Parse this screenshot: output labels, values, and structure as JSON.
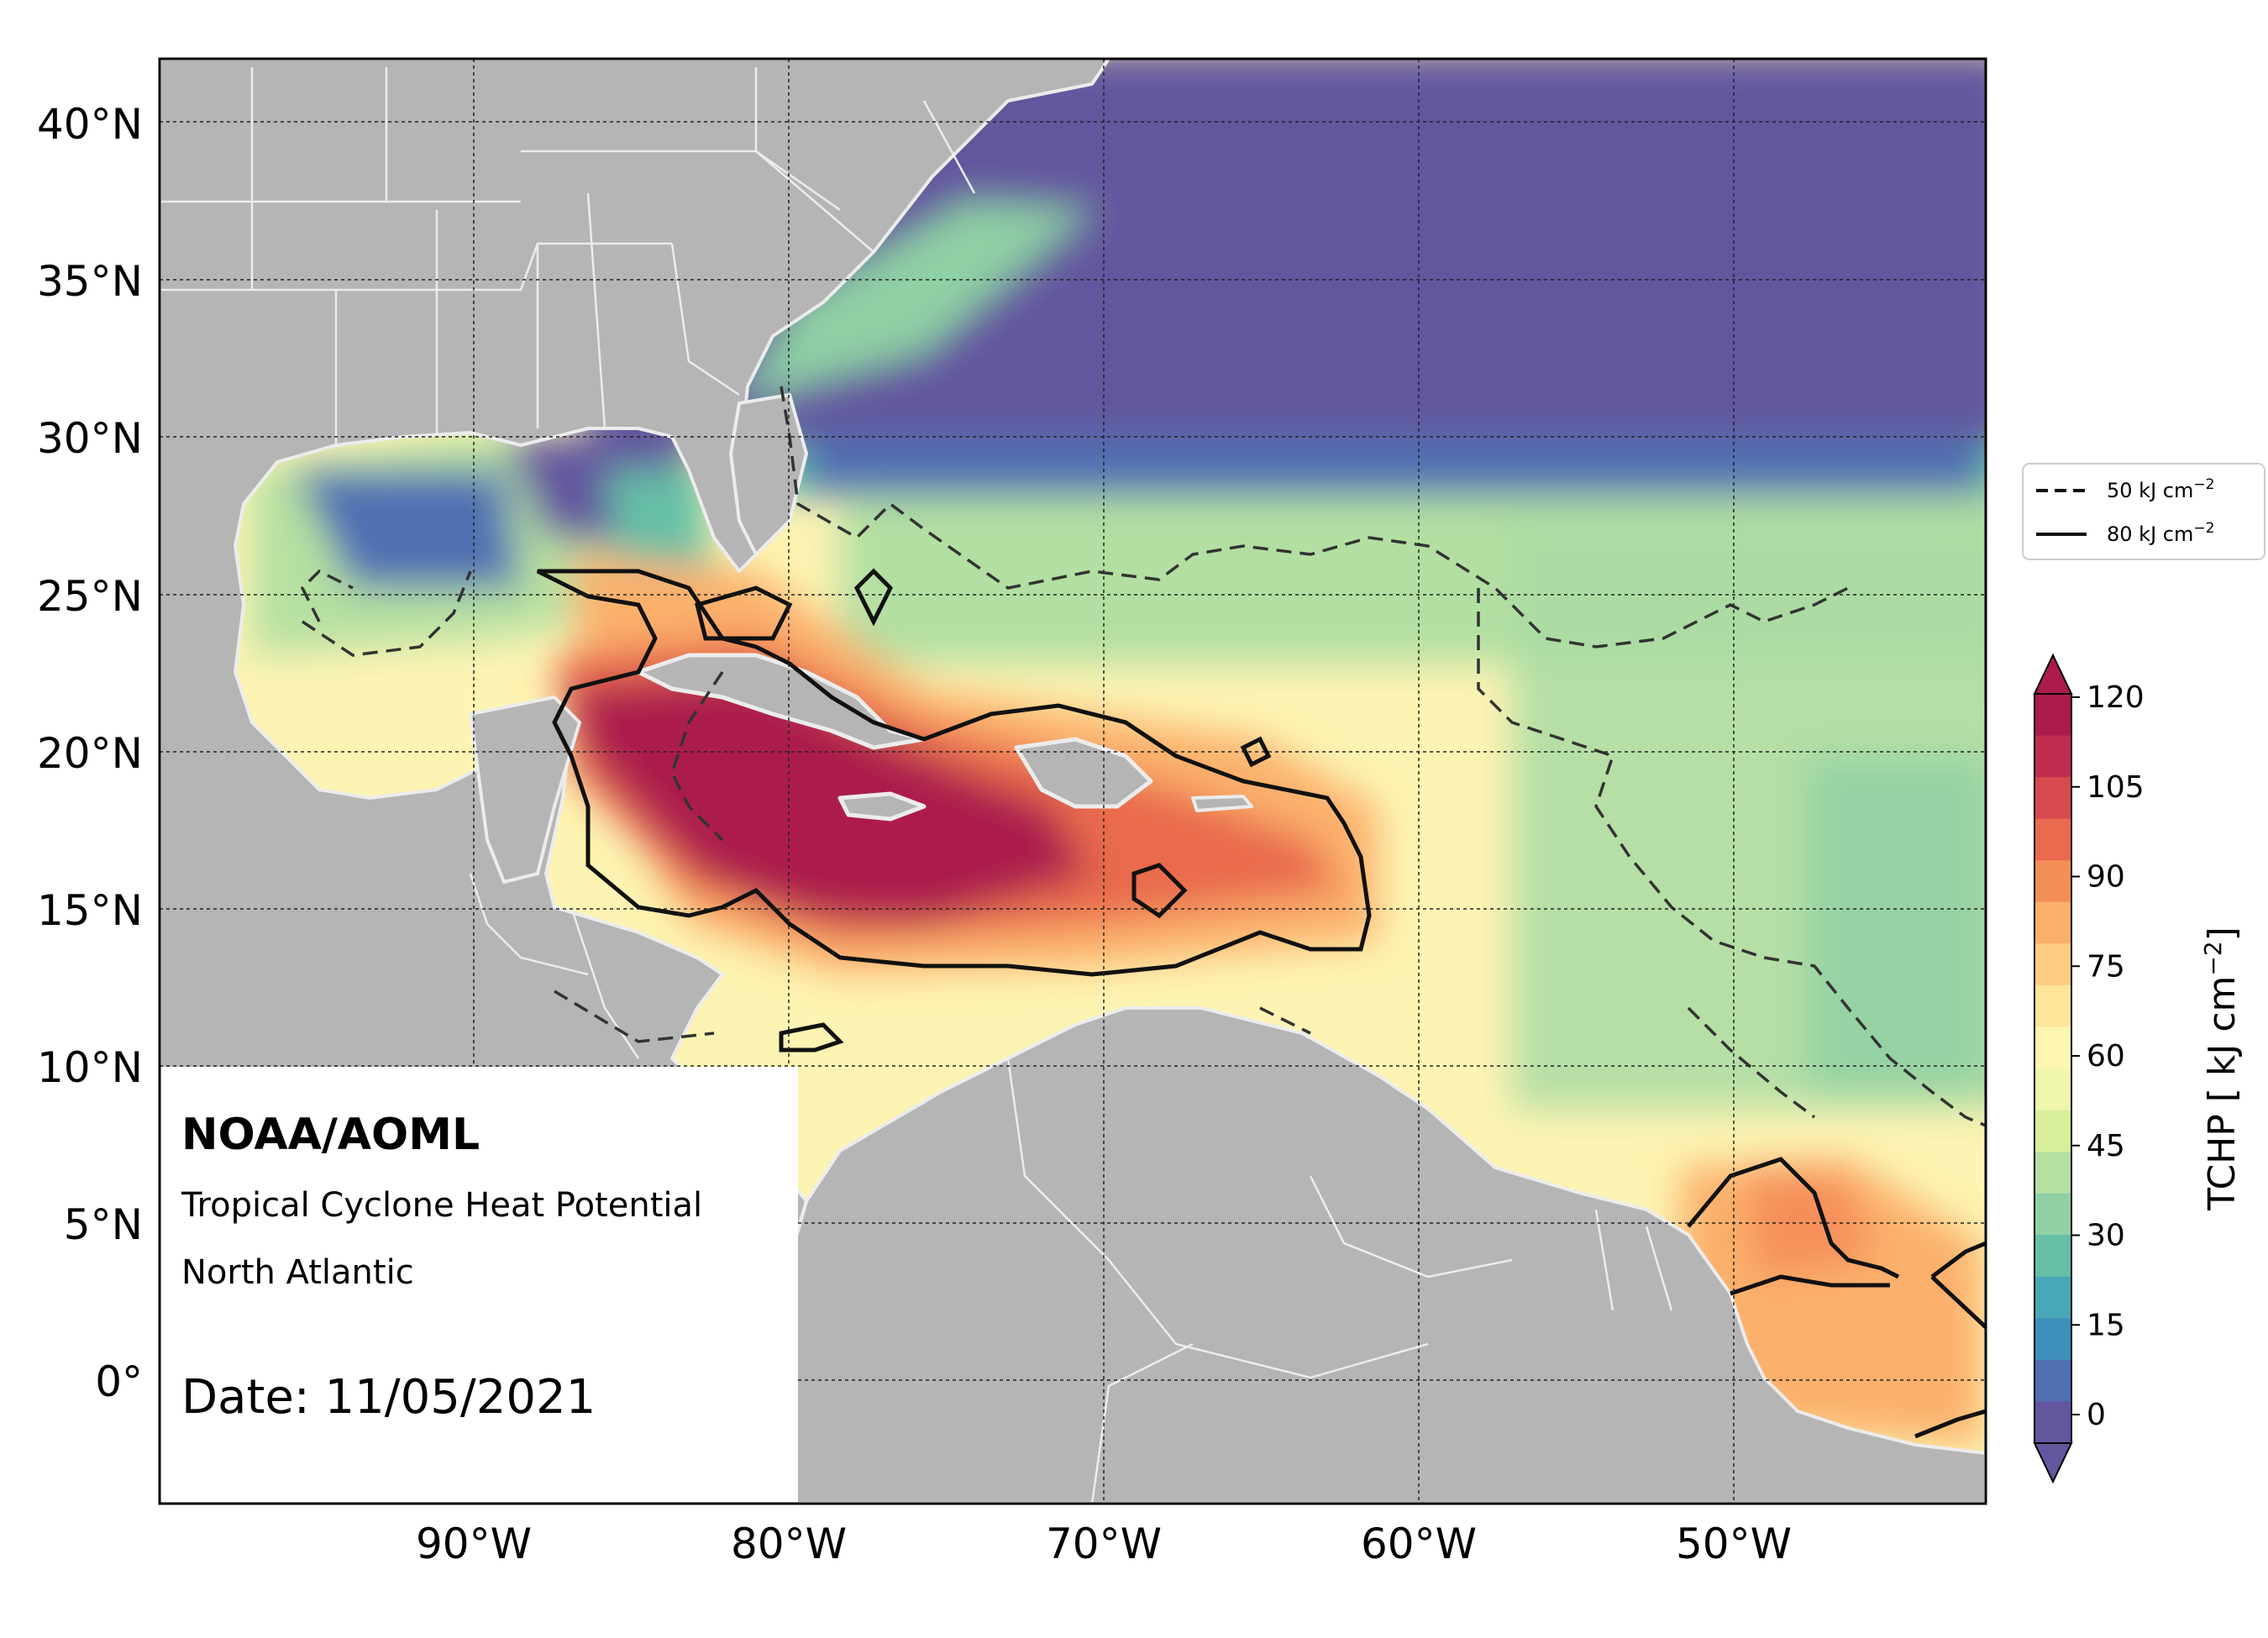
{
  "annotation": {
    "org": "NOAA/AOML",
    "product": "Tropical Cyclone Heat Potential",
    "region": "North Atlantic",
    "date": "Date: 11/05/2021"
  },
  "axes": {
    "lat_ticks": [
      "40°N",
      "35°N",
      "30°N",
      "25°N",
      "20°N",
      "15°N",
      "10°N",
      "5°N",
      "0°"
    ],
    "lon_ticks": [
      "90°W",
      "80°W",
      "70°W",
      "60°W",
      "50°W"
    ],
    "lon_range": [
      -100,
      -42
    ],
    "lat_range": [
      -4,
      42
    ]
  },
  "legend": {
    "dashed_label": "50 kJ cm",
    "dashed_sup": "−2",
    "solid_label": "80 kJ cm",
    "solid_sup": "−2"
  },
  "colorbar": {
    "label": "TCHP [ kJ cm",
    "label_sup": "−2",
    "label_end": "]",
    "ticks": [
      "120",
      "105",
      "90",
      "75",
      "60",
      "45",
      "30",
      "15",
      "0"
    ],
    "colors": [
      "#63569f",
      "#4f6fb2",
      "#3f8fbd",
      "#48a8b8",
      "#66bfa6",
      "#8fd0a4",
      "#b6e0a1",
      "#d8ee9b",
      "#f0f7ac",
      "#fef7b2",
      "#fee59a",
      "#fdcd81",
      "#fbb06c",
      "#f58f5a",
      "#e96a4e",
      "#d74a4d",
      "#c22d4f",
      "#ab1b4d"
    ]
  },
  "map_colors": {
    "land": "#b5b5b5",
    "border": "#ececec",
    "low": "#63569f",
    "mid": "#9fd7a5",
    "warm": "#fdf3b0",
    "hot": "#fbb06c",
    "hottest": "#ab1b4d"
  }
}
